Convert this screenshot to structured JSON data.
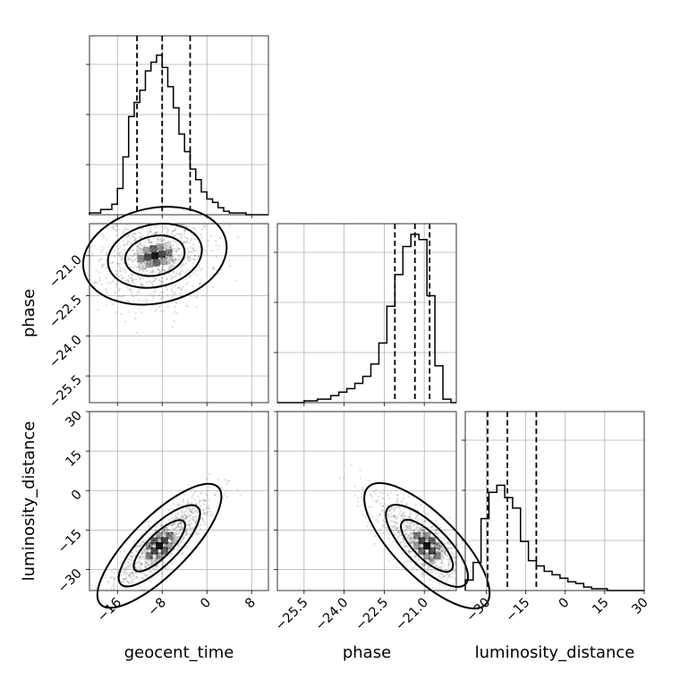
{
  "chart_data": {
    "type": "corner",
    "parameters": [
      {
        "label": "geocent_time",
        "range": [
          -21,
          11
        ],
        "ticks": [
          -16,
          -8,
          0,
          8
        ],
        "tick_labels": [
          "−16",
          "−8",
          "0",
          "8"
        ],
        "quantiles": [
          -12.5,
          -8,
          -3
        ],
        "histogram": {
          "edges": [
            -21,
            -19,
            -17,
            -16,
            -15,
            -14,
            -13,
            -12,
            -11,
            -10,
            -9,
            -8,
            -7,
            -6,
            -5,
            -4,
            -3,
            -2,
            -1,
            0,
            1,
            2,
            3,
            4,
            5,
            6,
            7,
            8,
            9,
            11
          ],
          "counts": [
            0.01,
            0.03,
            0.06,
            0.15,
            0.33,
            0.56,
            0.64,
            0.71,
            0.82,
            0.87,
            0.91,
            0.84,
            0.73,
            0.61,
            0.46,
            0.36,
            0.26,
            0.2,
            0.13,
            0.09,
            0.07,
            0.04,
            0.02,
            0.01,
            0.01,
            0.01,
            0.0,
            0.0,
            0.0
          ]
        }
      },
      {
        "label": "phase",
        "range": [
          -26.5,
          -19.8
        ],
        "ticks": [
          -25.5,
          -24.0,
          -22.5,
          -21.0
        ],
        "tick_labels": [
          "−25.5",
          "−24.0",
          "−22.5",
          "−21.0"
        ],
        "quantiles": [
          -22.1,
          -21.35,
          -20.8
        ],
        "histogram": {
          "edges": [
            -26.5,
            -25.5,
            -25.0,
            -24.5,
            -24.2,
            -23.9,
            -23.6,
            -23.3,
            -23.0,
            -22.7,
            -22.4,
            -22.1,
            -21.8,
            -21.5,
            -21.2,
            -20.9,
            -20.6,
            -20.3,
            -20.0,
            -19.8
          ],
          "counts": [
            0.0,
            0.01,
            0.02,
            0.04,
            0.06,
            0.08,
            0.11,
            0.15,
            0.22,
            0.34,
            0.55,
            0.73,
            0.89,
            0.96,
            0.93,
            0.61,
            0.21,
            0.02,
            0.0
          ]
        }
      },
      {
        "label": "luminosity_distance",
        "range": [
          -38,
          30
        ],
        "ticks": [
          -30,
          -15,
          0,
          15,
          30
        ],
        "tick_labels": [
          "−30",
          "−15",
          "0",
          "15",
          "30"
        ],
        "quantiles": [
          -29.5,
          -22,
          -11
        ],
        "histogram": {
          "edges": [
            -38,
            -35,
            -32,
            -29,
            -26,
            -23,
            -20,
            -17,
            -14,
            -11,
            -8,
            -5,
            -2,
            1,
            4,
            7,
            10,
            13,
            16,
            20,
            24,
            30
          ],
          "counts": [
            0.06,
            0.16,
            0.41,
            0.56,
            0.6,
            0.53,
            0.47,
            0.28,
            0.17,
            0.14,
            0.11,
            0.09,
            0.07,
            0.05,
            0.04,
            0.02,
            0.01,
            0.01,
            0.0,
            0.0,
            0.0
          ]
        }
      }
    ],
    "density_peaks": [
      {
        "x_param": 0,
        "y_param": 1,
        "peak": [
          -9.3,
          -21.0
        ],
        "rho": 0.2
      },
      {
        "x_param": 0,
        "y_param": 2,
        "peak": [
          -8.5,
          -21.0
        ],
        "rho": 0.88
      },
      {
        "x_param": 1,
        "y_param": 2,
        "peak": [
          -20.9,
          -21.0
        ],
        "rho": -0.8
      }
    ],
    "grid": true,
    "legend": "none"
  }
}
